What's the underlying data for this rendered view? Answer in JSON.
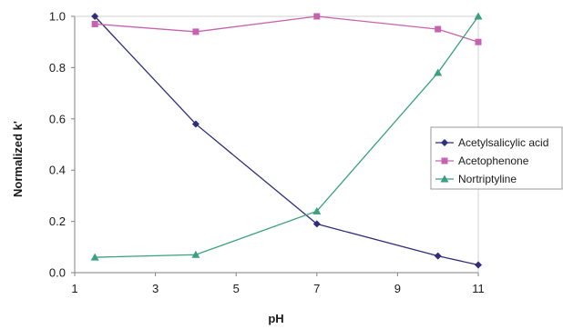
{
  "chart_data": {
    "type": "line",
    "title": "",
    "xlabel": "pH",
    "ylabel": "Normalized k'",
    "xlim": [
      1,
      11
    ],
    "ylim": [
      0.0,
      1.0
    ],
    "x_ticks": [
      "1",
      "3",
      "5",
      "7",
      "9",
      "11"
    ],
    "y_ticks": [
      "0.0",
      "0.2",
      "0.4",
      "0.6",
      "0.8",
      "1.0"
    ],
    "grid": false,
    "legend_position": "right",
    "series": [
      {
        "name": "Acetylsalicylic acid",
        "color": "#2e2e7a",
        "marker": "diamond",
        "x": [
          1.5,
          4,
          7,
          10,
          11
        ],
        "y": [
          1.0,
          0.58,
          0.19,
          0.065,
          0.03
        ]
      },
      {
        "name": "Acetophenone",
        "color": "#c663b0",
        "marker": "square",
        "x": [
          1.5,
          4,
          7,
          10,
          11
        ],
        "y": [
          0.97,
          0.94,
          1.0,
          0.95,
          0.9
        ]
      },
      {
        "name": "Nortriptyline",
        "color": "#3aa07e",
        "marker": "triangle",
        "x": [
          1.5,
          4,
          7,
          10,
          11
        ],
        "y": [
          0.06,
          0.07,
          0.24,
          0.78,
          1.0
        ]
      }
    ]
  }
}
